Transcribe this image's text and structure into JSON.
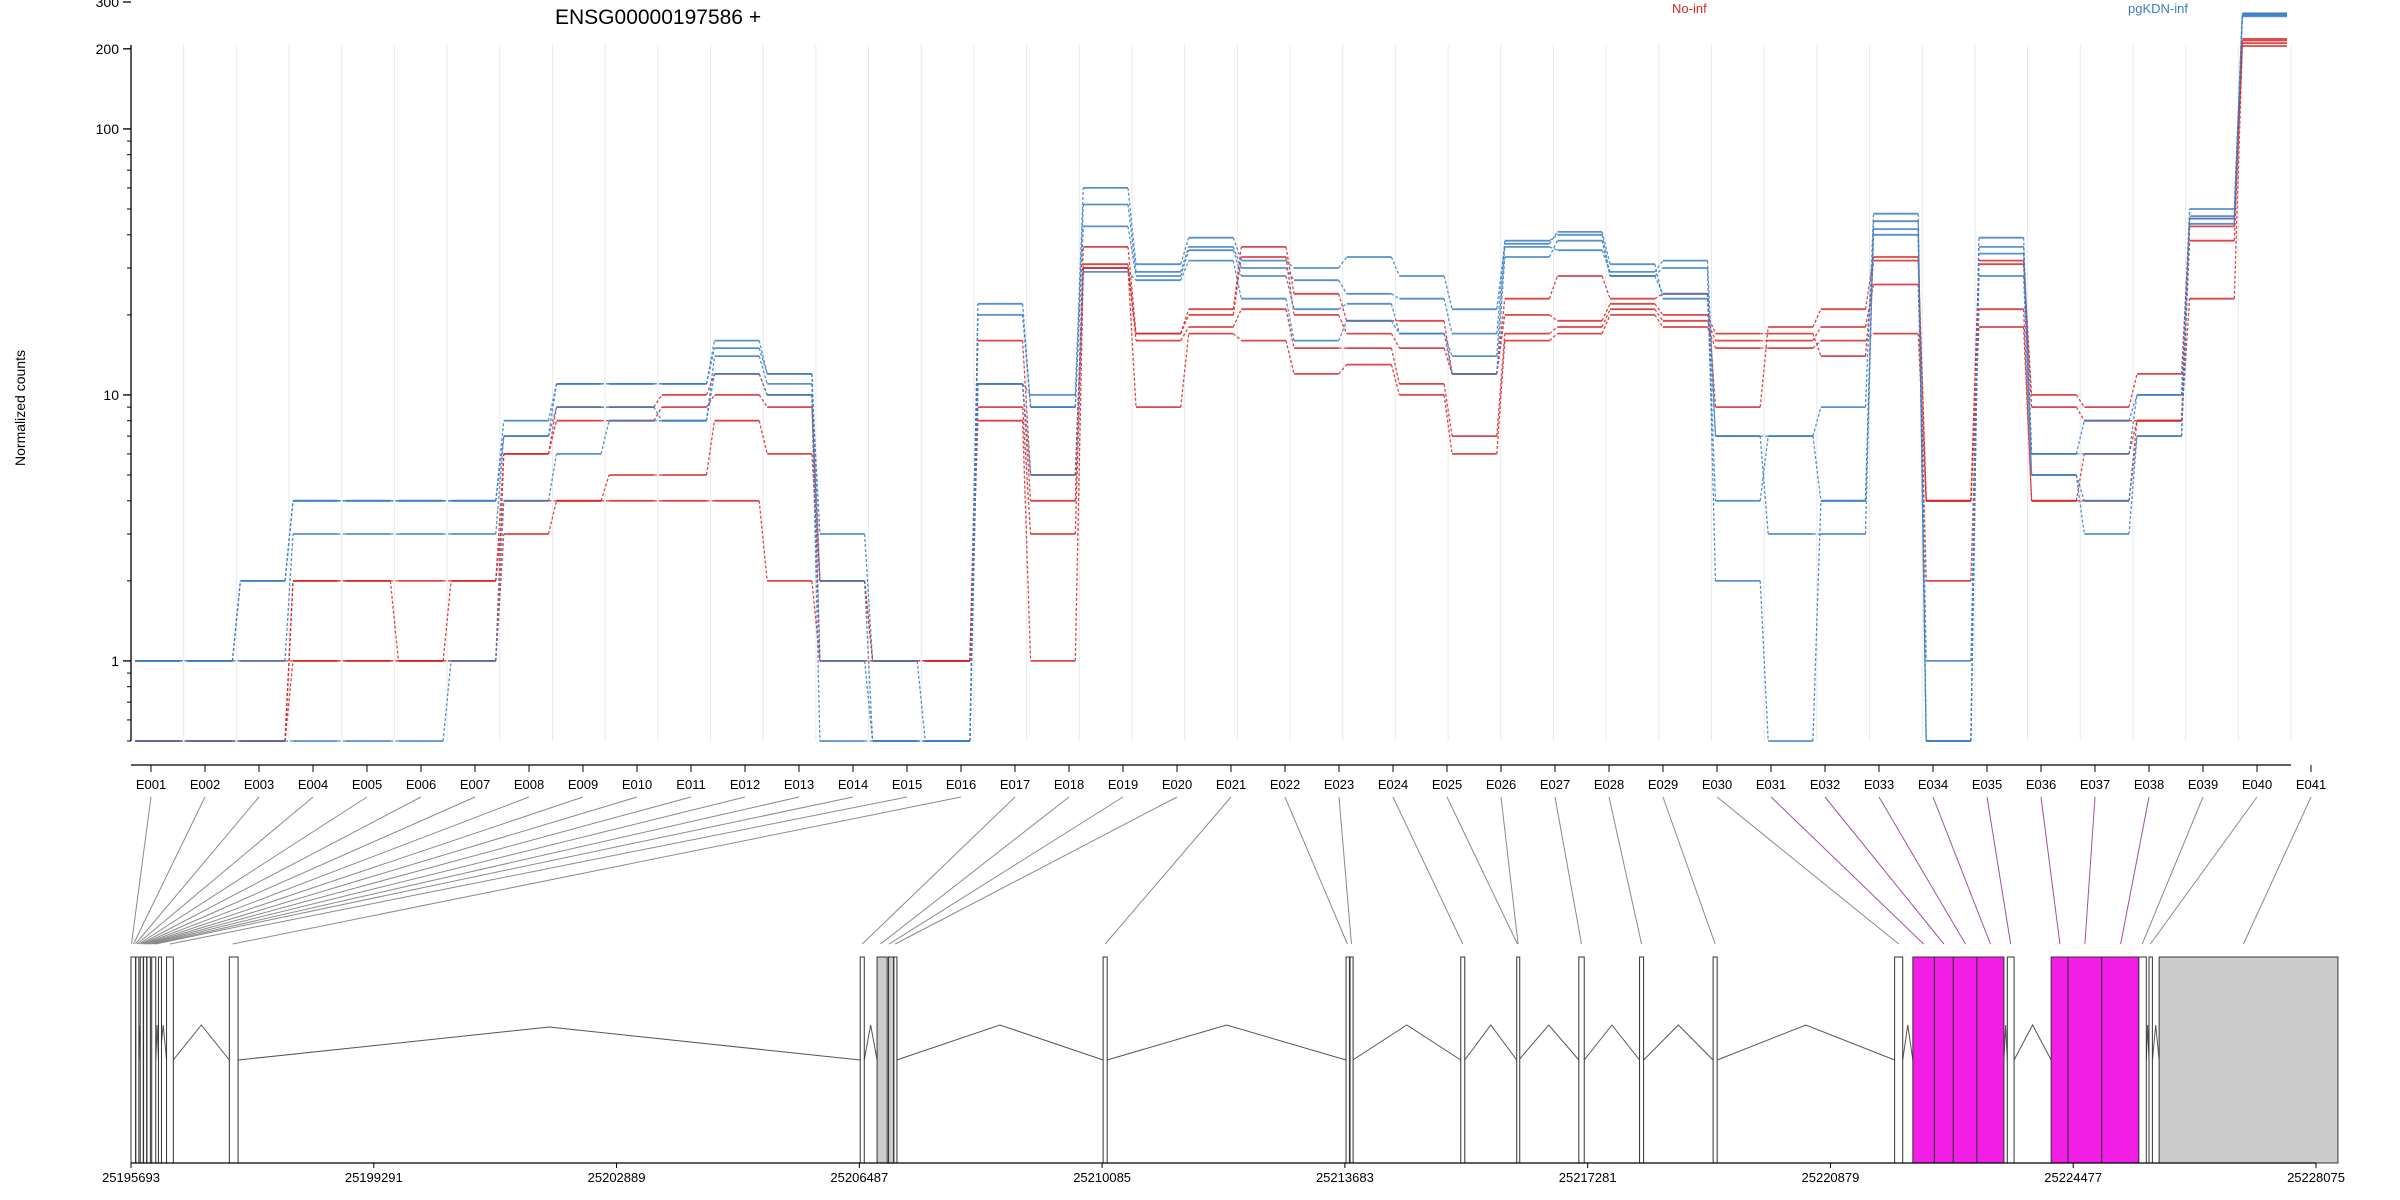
{
  "chart_data": {
    "type": "line",
    "title": "ENSG00000197586 +",
    "xlabel": "",
    "ylabel": "Normalized counts",
    "yscale": "log",
    "ylim": [
      0.5,
      330
    ],
    "ytick_values": [
      1,
      10,
      100,
      200,
      300
    ],
    "ytick_labels": [
      "1",
      "10",
      "100",
      "200",
      "300"
    ],
    "grid": "vertical",
    "legend": [
      {
        "label": "No-inf",
        "color": "#d62728"
      },
      {
        "label": "pgKDN-inf",
        "color": "#3b7dc4"
      }
    ],
    "legend_placement": "top",
    "categories": [
      "E001",
      "E002",
      "E003",
      "E004",
      "E005",
      "E006",
      "E007",
      "E008",
      "E009",
      "E010",
      "E011",
      "E012",
      "E013",
      "E014",
      "E015",
      "E016",
      "E017",
      "E018",
      "E019",
      "E020",
      "E021",
      "E022",
      "E023",
      "E024",
      "E025",
      "E026",
      "E027",
      "E028",
      "E029",
      "E030",
      "E031",
      "E032",
      "E033",
      "E034",
      "E035",
      "E036",
      "E037",
      "E038",
      "E039",
      "E040",
      "E041"
    ],
    "series": [
      {
        "group": "No-inf",
        "color": "#d62728",
        "values": [
          0.5,
          0.5,
          0.5,
          1.0,
          1.0,
          1.0,
          1.0,
          3.0,
          4.0,
          4.0,
          4.0,
          4.0,
          2.0,
          1.0,
          1.0,
          1.0,
          8.0,
          1.0,
          30,
          9.0,
          17,
          16,
          12,
          13,
          10,
          6.0,
          16,
          17,
          20,
          18,
          15,
          15,
          16,
          17,
          4.0,
          18,
          4.0,
          4.0,
          8.0,
          23,
          205
        ]
      },
      {
        "group": "No-inf",
        "color": "#d62728",
        "values": [
          0.5,
          0.5,
          0.5,
          2.0,
          2.0,
          1.0,
          2.0,
          4.0,
          4.0,
          5.0,
          5.0,
          8.0,
          6.0,
          2.0,
          1.0,
          1.0,
          9.0,
          3.0,
          31,
          16,
          18,
          21,
          15,
          15,
          11,
          7.0,
          17,
          18,
          21,
          19,
          16,
          16,
          18,
          26,
          2.0,
          21,
          4.0,
          6.0,
          8.0,
          38,
          210
        ]
      },
      {
        "group": "No-inf",
        "color": "#d62728",
        "values": [
          0.5,
          0.5,
          0.5,
          2.0,
          2.0,
          2.0,
          2.0,
          6.0,
          8.0,
          8.0,
          9.0,
          10,
          9.0,
          2.0,
          1.0,
          1.0,
          11,
          4.0,
          36,
          17,
          20,
          33,
          20,
          17,
          15,
          12,
          20,
          19,
          22,
          20,
          17,
          17,
          14,
          32,
          4.0,
          31,
          9.0,
          8.0,
          8.0,
          43,
          215
        ]
      },
      {
        "group": "No-inf",
        "color": "#d62728",
        "values": [
          1.0,
          1.0,
          1.0,
          1.0,
          1.0,
          1.0,
          1.0,
          6.0,
          9.0,
          9.0,
          10,
          12,
          10,
          1.0,
          1.0,
          1.0,
          16,
          5.0,
          30,
          17,
          21,
          36,
          24,
          19,
          19,
          12,
          23,
          28,
          23,
          24,
          9.0,
          18,
          21,
          33,
          4.0,
          32,
          10,
          9.0,
          12,
          46,
          218
        ]
      },
      {
        "group": "pgKDN-inf",
        "color": "#3b7dc4",
        "values": [
          0.5,
          0.5,
          0.5,
          0.5,
          0.5,
          0.5,
          1.0,
          4.0,
          6.0,
          8.0,
          8.0,
          12,
          10,
          0.5,
          0.5,
          0.5,
          11,
          5.0,
          29,
          27,
          32,
          23,
          16,
          19,
          17,
          12,
          33,
          38,
          28,
          30,
          2.0,
          0.5,
          4.0,
          40,
          1.0,
          28,
          5.0,
          3.0,
          7.0,
          44,
          265
        ]
      },
      {
        "group": "pgKDN-inf",
        "color": "#3b7dc4",
        "values": [
          1.0,
          1.0,
          1.0,
          3.0,
          3.0,
          3.0,
          3.0,
          7.0,
          9.0,
          9.0,
          8.0,
          14,
          11,
          3.0,
          1.0,
          0.5,
          20,
          9.0,
          43,
          28,
          35,
          28,
          21,
          22,
          17,
          14,
          36,
          35,
          29,
          32,
          7.0,
          3.0,
          3.0,
          45,
          0.5,
          34,
          5.0,
          4.0,
          7.0,
          47,
          268
        ]
      },
      {
        "group": "pgKDN-inf",
        "color": "#3b7dc4",
        "values": [
          1.0,
          1.0,
          2.0,
          4.0,
          4.0,
          4.0,
          4.0,
          7.0,
          11,
          11,
          11,
          15,
          12,
          2.0,
          0.5,
          0.5,
          22,
          9.0,
          52,
          29,
          36,
          30,
          27,
          24,
          23,
          17,
          38,
          40,
          28,
          24,
          4.0,
          7.0,
          4.0,
          42,
          0.5,
          36,
          6.0,
          6.0,
          10,
          46,
          270
        ]
      },
      {
        "group": "pgKDN-inf",
        "color": "#3b7dc4",
        "values": [
          1.0,
          1.0,
          2.0,
          4.0,
          4.0,
          4.0,
          4.0,
          8.0,
          11,
          11,
          11,
          16,
          12,
          1.0,
          0.5,
          0.5,
          11,
          10,
          60,
          31,
          39,
          32,
          30,
          33,
          28,
          21,
          37,
          41,
          31,
          23,
          7.0,
          7.0,
          9.0,
          48,
          0.5,
          39,
          6.0,
          8.0,
          10,
          50,
          272
        ]
      }
    ],
    "exons_highlighted": [
      "E031",
      "E032",
      "E033",
      "E034",
      "E035",
      "E036",
      "E037",
      "E038"
    ],
    "gene_axis": {
      "tick_labels": [
        "25195693",
        "25199291",
        "25202889",
        "25206487",
        "25210085",
        "25213683",
        "25217281",
        "25220879",
        "25224477",
        "25228075"
      ],
      "range": [
        25195693,
        25228075
      ]
    },
    "gene_model": {
      "exon_fill": "#ffffff",
      "exon_fill_shaded": "#cccccc",
      "exon_fill_highlight": "#f21ee5",
      "connector_color": "#8a8a8a",
      "connector_color_highlight": "#a64ea6"
    }
  }
}
